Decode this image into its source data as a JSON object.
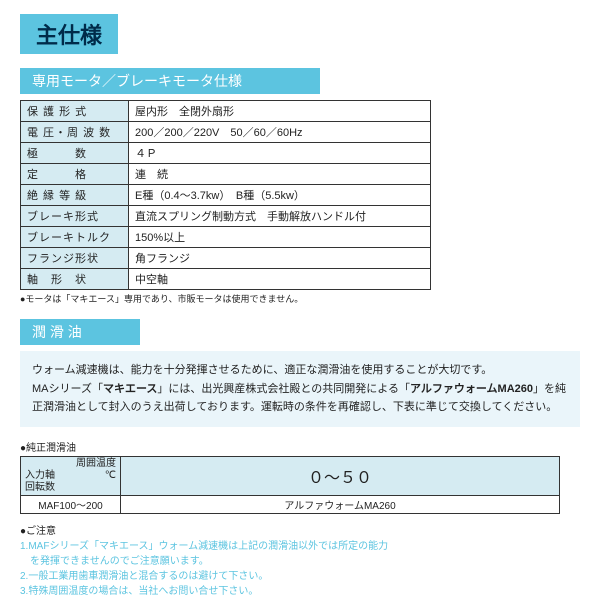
{
  "main_title": "主仕様",
  "motor_spec_banner": "専用モータ／ブレーキモータ仕様",
  "spec_rows": [
    {
      "label": "保 護 形 式",
      "value": "屋内形　全閉外扇形"
    },
    {
      "label": "電 圧・周 波 数",
      "value": "200／200／220V　50／60／60Hz"
    },
    {
      "label": "極　　　数",
      "value": "４Ｐ"
    },
    {
      "label": "定　　　格",
      "value": "連　続"
    },
    {
      "label": "絶 縁 等 級",
      "value": "E種（0.4～3.7kw）　B種（5.5kw）"
    },
    {
      "label": "ブレーキ形式",
      "value": "直流スプリング制動方式　手動解放ハンドル付"
    },
    {
      "label": "ブレーキトルク",
      "value": "150%以上"
    },
    {
      "label": "フランジ形状",
      "value": "角フランジ"
    },
    {
      "label": "軸　形　状",
      "value": "中空軸"
    }
  ],
  "motor_footnote": "●モータは「マキエース」専用であり、市販モータは使用できません。",
  "lube_banner": "潤 滑 油",
  "desc_line1_a": "ウォーム減速機は、能力を十分発揮させるために、適正な潤滑油を使用することが大切です。",
  "desc_line2_a": "MAシリーズ「",
  "desc_line2_b": "マキエース",
  "desc_line2_c": "」には、出光興産株式会社殿との共同開発による「",
  "desc_line2_d": "アルファウォームMA260",
  "desc_line2_e": "」を純正潤滑油として封入のうえ出荷しております。運転時の条件を再確認し、下表に準じて交換してください。",
  "lube_heading": "●純正潤滑油",
  "lube_table": {
    "col1_top": "入力軸",
    "col1_bot": "回転数",
    "col2_top": "周囲温度",
    "col2_unit": "℃",
    "range": "０～５０",
    "row_label": "MAF100～200",
    "row_value": "アルファウォームMA260"
  },
  "caution_title": "●ご注意",
  "caution_items": [
    "1.MAFシリーズ「マキエース」ウォーム減速機は上記の潤滑油以外では所定の能力",
    "　を発揮できませんのでご注意願います。",
    "2.一般工業用歯車潤滑油と混合するのは避けて下さい。",
    "3.特殊周囲温度の場合は、当社へお問い合せ下さい。"
  ]
}
